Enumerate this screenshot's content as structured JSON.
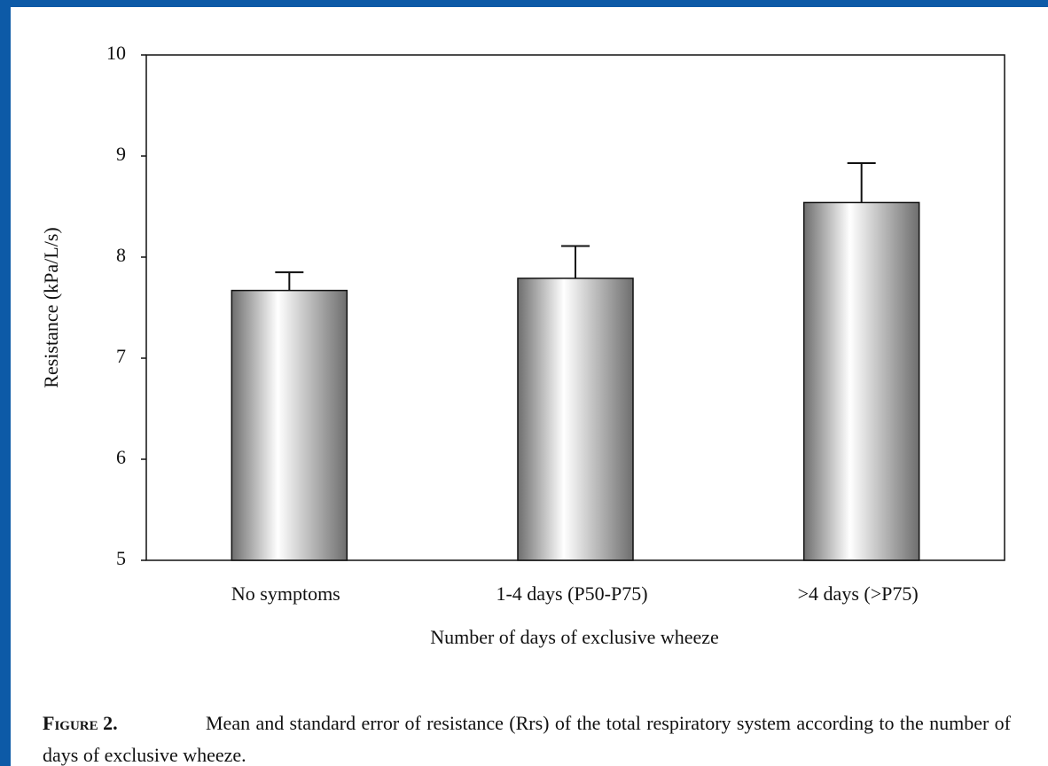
{
  "chart_data": {
    "type": "bar",
    "categories": [
      "No symptoms",
      "1-4 days (P50-P75)",
      ">4 days (>P75)"
    ],
    "values": [
      7.67,
      7.79,
      8.54
    ],
    "errors": [
      0.18,
      0.32,
      0.39
    ],
    "xlabel": "Number of days of exclusive wheeze",
    "ylabel": "Resistance (kPa/L/s)",
    "ylim": [
      5,
      10
    ],
    "yticks": [
      5,
      6,
      7,
      8,
      9,
      10
    ],
    "grid": false
  },
  "caption": {
    "label": "Figure 2.",
    "text": "Mean and standard error of resistance (Rrs) of the total respiratory system according to the number of days of exclusive wheeze."
  }
}
